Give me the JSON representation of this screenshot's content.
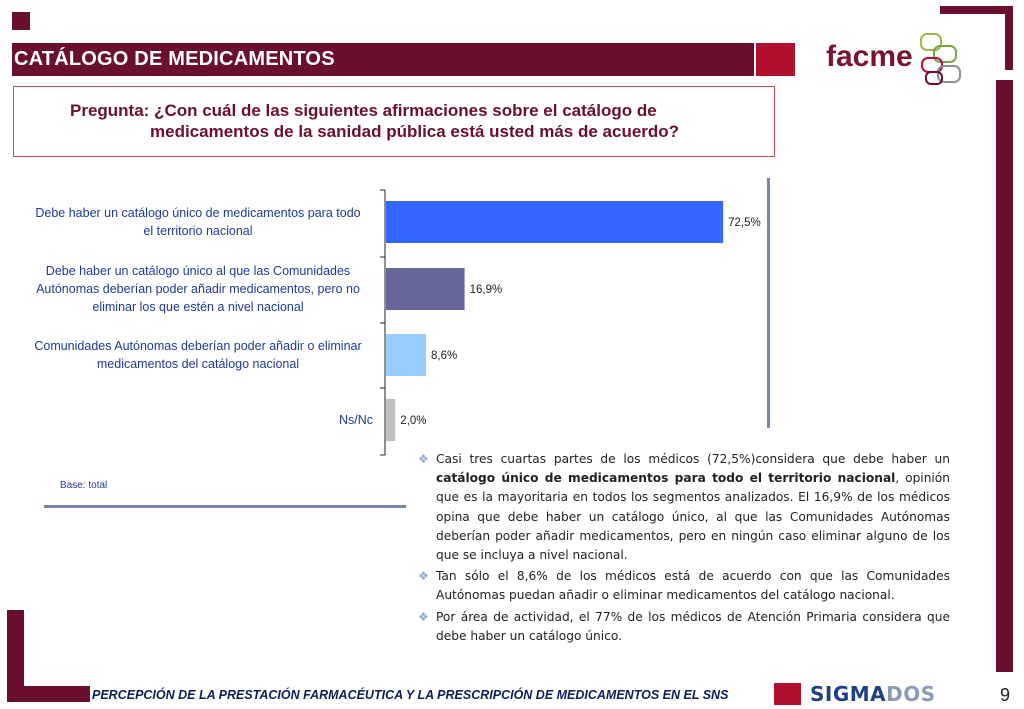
{
  "header": {
    "title": "CATÁLOGO DE MEDICAMENTOS",
    "logo_text": "facme"
  },
  "question": {
    "line1": "Pregunta:  ¿Con cuál de las siguientes afirmaciones sobre el catálogo de",
    "line2": "medicamentos de la sanidad pública está usted más de acuerdo?"
  },
  "chart_data": {
    "type": "bar",
    "orientation": "horizontal",
    "categories": [
      [
        "Debe haber un catálogo único de medicamentos para todo",
        "el territorio nacional"
      ],
      [
        "Debe haber un catálogo único  al que las Comunidades",
        "Autónomas deberían poder añadir medicamentos, pero no",
        "eliminar los que estén a nivel nacional"
      ],
      [
        "Comunidades Autónomas deberían poder añadir o eliminar",
        "medicamentos del catálogo nacional"
      ],
      [
        "Ns/Nc"
      ]
    ],
    "values": [
      72.5,
      16.9,
      8.6,
      2.0
    ],
    "value_labels": [
      "72,5%",
      "16,9%",
      "8,6%",
      "2,0%"
    ],
    "colors": [
      "#3366ff",
      "#666699",
      "#99ccff",
      "#c0c0c0"
    ],
    "xlim": [
      0,
      100
    ],
    "grid": false,
    "legend": "none"
  },
  "base_note": "Base: total",
  "bullets": [
    {
      "pre": "Casi tres cuartas partes de los médicos (72,5%)considera que debe haber un ",
      "bold": "catálogo único de medicamentos para todo el territorio nacional",
      "post": ", opinión que es la mayoritaria en todos los segmentos analizados. El 16,9% de los médicos opina que debe haber un catálogo único, al que las Comunidades Autónomas deberían poder añadir medicamentos, pero en ningún caso eliminar alguno de los que se incluya a nivel nacional."
    },
    {
      "pre": "Tan sólo el 8,6% de los médicos está de acuerdo con que las Comunidades Autónomas puedan añadir o eliminar medicamentos del catálogo nacional.",
      "bold": "",
      "post": ""
    },
    {
      "pre": " Por área de actividad, el 77% de los médicos de Atención Primaria considera que debe haber un catálogo único.",
      "bold": "",
      "post": ""
    }
  ],
  "bullet_icon": "diamond-bullet-icon",
  "footer": {
    "text": "PERCEPCIÓN DE LA PRESTACIÓN FARMACÉUTICA Y LA PRESCRIPCIÓN DE MEDICAMENTOS EN EL SNS",
    "logo_a": "SIGMA",
    "logo_b": "DOS",
    "page_number": "9"
  },
  "colors": {
    "brand_dark": "#6b0f2e",
    "brand_red": "#b0102e",
    "text_blue": "#1f3a93"
  }
}
